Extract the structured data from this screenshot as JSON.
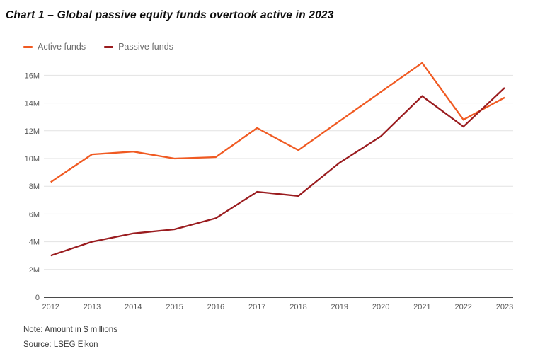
{
  "chart_data": {
    "type": "line",
    "title": "Chart 1 – Global passive equity funds overtook active in 2023",
    "x": [
      "2012",
      "2013",
      "2014",
      "2015",
      "2016",
      "2017",
      "2018",
      "2019",
      "2020",
      "2021",
      "2022",
      "2023"
    ],
    "series": [
      {
        "name": "Active funds",
        "color": "#f05a22",
        "values": [
          8.3,
          10.3,
          10.5,
          10.0,
          10.1,
          12.2,
          10.6,
          12.7,
          14.8,
          16.9,
          12.8,
          14.4
        ]
      },
      {
        "name": "Passive funds",
        "color": "#9a1c1f",
        "values": [
          3.0,
          4.0,
          4.6,
          4.9,
          5.7,
          7.6,
          7.3,
          9.7,
          11.6,
          14.5,
          12.3,
          15.1
        ]
      }
    ],
    "ylim": [
      0,
      16
    ],
    "y_ticks": [
      {
        "value": 0,
        "label": "0"
      },
      {
        "value": 2,
        "label": "2M"
      },
      {
        "value": 4,
        "label": "4M"
      },
      {
        "value": 6,
        "label": "6M"
      },
      {
        "value": 8,
        "label": "8M"
      },
      {
        "value": 10,
        "label": "10M"
      },
      {
        "value": 12,
        "label": "12M"
      },
      {
        "value": 14,
        "label": "14M"
      },
      {
        "value": 16,
        "label": "16M"
      }
    ],
    "grid": true,
    "legend_position": "top-left",
    "grid_color": "#e2e2e2",
    "axis_color": "#4a4a4a",
    "tick_color": "#595959"
  },
  "footer": {
    "note": "Note: Amount in $ millions",
    "source": "Source: LSEG Eikon"
  }
}
